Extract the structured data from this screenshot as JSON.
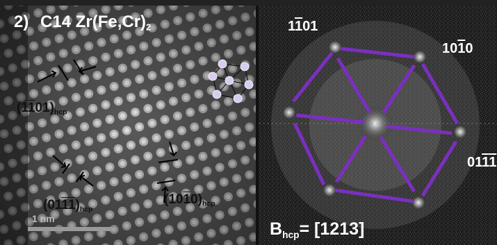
{
  "panel_title": {
    "prefix": "2)",
    "main": "C14 Zr(Fe,Cr)",
    "subscript": "2"
  },
  "planes_left": [
    {
      "parts": [
        "(1",
        "1",
        "01)"
      ],
      "over": [
        false,
        true,
        false
      ],
      "sub": "hcp"
    },
    {
      "parts": [
        "(01",
        "1",
        "1",
        ")"
      ],
      "over": [
        false,
        true,
        true,
        false
      ],
      "sub": "hcp"
    },
    {
      "parts": [
        "(10",
        "1",
        "0)"
      ],
      "over": [
        false,
        true,
        false
      ],
      "sub": "hcp"
    }
  ],
  "scale_bar_label": "1 nm",
  "fft_spots": {
    "top_left": [
      "1",
      "1",
      "01"
    ],
    "top_right": [
      "10",
      "1",
      "0"
    ],
    "right": [
      "01",
      "1",
      "1"
    ]
  },
  "zone_axis": {
    "prefix": "B",
    "subscript": "hcp",
    "value": "= [1213]"
  },
  "colors": {
    "overlay_lines": "#7b2fbf",
    "overlay_dots": "#d8ccf0",
    "text": "#ffffff"
  }
}
